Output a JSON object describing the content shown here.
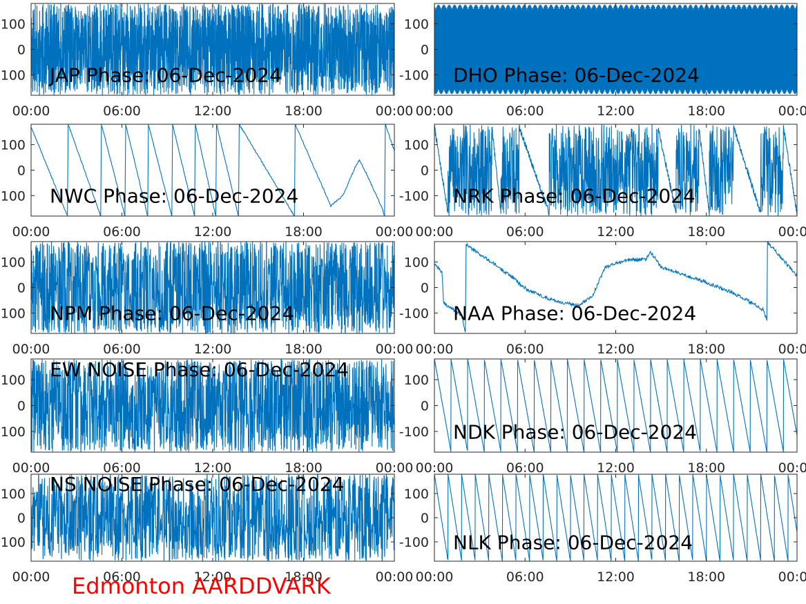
{
  "figure": {
    "footer_label": "Edmonton AARDDVARK",
    "footer_color": "#ff0000",
    "line_color": "#0072bd",
    "axis_color": "#262626",
    "background": "#ffffff"
  },
  "chart_data": [
    {
      "id": "jap",
      "type": "line",
      "title": "JAP Phase: 06-Dec-2024",
      "x_ticks": [
        "00:00",
        "06:00",
        "12:00",
        "18:00",
        "00:00"
      ],
      "y_ticks": [
        "-100",
        "0",
        "100"
      ],
      "ylim": [
        -180,
        180
      ],
      "xlim_hours": [
        0,
        24
      ],
      "series": [
        {
          "pattern": "noise",
          "seed": 11,
          "dense": 0.95
        }
      ]
    },
    {
      "id": "dho",
      "type": "line",
      "title": "DHO Phase: 06-Dec-2024",
      "x_ticks": [
        "00:00",
        "06:00",
        "12:00",
        "18:00",
        "00:00"
      ],
      "y_ticks": [
        "-100",
        "0",
        "100"
      ],
      "ylim": [
        -180,
        180
      ],
      "xlim_hours": [
        0,
        24
      ],
      "series": [
        {
          "pattern": "oscillate",
          "period_hours": 0.18
        }
      ]
    },
    {
      "id": "nwc",
      "type": "line",
      "title": "NWC Phase: 06-Dec-2024",
      "x_ticks": [
        "00:00",
        "06:00",
        "12:00",
        "18:00",
        "00:00"
      ],
      "y_ticks": [
        "-100",
        "0",
        "100"
      ],
      "ylim": [
        -180,
        180
      ],
      "xlim_hours": [
        0,
        24
      ],
      "series": [
        {
          "pattern": "keypoints",
          "points": [
            [
              0,
              170
            ],
            [
              2.4,
              -180
            ],
            [
              2.45,
              180
            ],
            [
              4.6,
              -180
            ],
            [
              4.65,
              180
            ],
            [
              6.2,
              -180
            ],
            [
              6.25,
              180
            ],
            [
              7.7,
              -180
            ],
            [
              7.75,
              180
            ],
            [
              9.3,
              -180
            ],
            [
              9.35,
              180
            ],
            [
              10.8,
              -180
            ],
            [
              10.85,
              180
            ],
            [
              12.2,
              -180
            ],
            [
              12.25,
              180
            ],
            [
              13.7,
              -180
            ],
            [
              13.75,
              180
            ],
            [
              17.4,
              -180
            ],
            [
              17.45,
              180
            ],
            [
              19.8,
              -140
            ],
            [
              20.6,
              -100
            ],
            [
              21.4,
              10
            ],
            [
              21.7,
              40
            ],
            [
              22.2,
              -20
            ],
            [
              23.2,
              -150
            ],
            [
              23.35,
              -180
            ],
            [
              23.4,
              180
            ],
            [
              24,
              75
            ]
          ],
          "noise": 3
        }
      ]
    },
    {
      "id": "nrk",
      "type": "line",
      "title": "NRK Phase: 06-Dec-2024",
      "x_ticks": [
        "00:00",
        "06:00",
        "12:00",
        "18:00",
        "00:00"
      ],
      "y_ticks": [
        "-100",
        "0",
        "100"
      ],
      "ylim": [
        -180,
        180
      ],
      "xlim_hours": [
        0,
        24
      ],
      "series": [
        {
          "pattern": "sawnoise",
          "segments": [
            [
              0,
              0.9
            ],
            [
              0.9,
              3.8
            ],
            [
              3.8,
              4.4
            ],
            [
              4.4,
              5.6
            ],
            [
              5.6,
              7.6
            ],
            [
              7.6,
              14.8
            ],
            [
              14.8,
              16.0
            ],
            [
              16.0,
              17.5
            ],
            [
              17.5,
              18.2
            ],
            [
              18.2,
              19.8
            ],
            [
              19.8,
              21.6
            ],
            [
              21.6,
              23.1
            ],
            [
              23.1,
              24
            ]
          ],
          "seed": 7
        }
      ]
    },
    {
      "id": "npm",
      "type": "line",
      "title": "NPM Phase: 06-Dec-2024",
      "x_ticks": [
        "00:00",
        "06:00",
        "12:00",
        "18:00",
        "00:00"
      ],
      "y_ticks": [
        "-100",
        "0",
        "100"
      ],
      "ylim": [
        -180,
        180
      ],
      "xlim_hours": [
        0,
        24
      ],
      "series": [
        {
          "pattern": "noise",
          "seed": 23,
          "dense": 0.55
        }
      ]
    },
    {
      "id": "naa",
      "type": "line",
      "title": "NAA Phase: 06-Dec-2024",
      "x_ticks": [
        "00:00",
        "06:00",
        "12:00",
        "18:00",
        "00:00"
      ],
      "y_ticks": [
        "-100",
        "0",
        "100"
      ],
      "ylim": [
        -180,
        180
      ],
      "xlim_hours": [
        0,
        24
      ],
      "series": [
        {
          "pattern": "keypoints",
          "points": [
            [
              0,
              95
            ],
            [
              0.5,
              60
            ],
            [
              0.6,
              -60
            ],
            [
              1.8,
              -110
            ],
            [
              2.05,
              -175
            ],
            [
              2.1,
              170
            ],
            [
              2.5,
              150
            ],
            [
              4.0,
              90
            ],
            [
              4.7,
              60
            ],
            [
              5.2,
              40
            ],
            [
              5.7,
              10
            ],
            [
              6.2,
              -10
            ],
            [
              7.4,
              -40
            ],
            [
              8.5,
              -60
            ],
            [
              9.5,
              -70
            ],
            [
              10.5,
              -30
            ],
            [
              11.3,
              80
            ],
            [
              12.3,
              100
            ],
            [
              13.0,
              110
            ],
            [
              14.0,
              110
            ],
            [
              14.3,
              140
            ],
            [
              15.0,
              80
            ],
            [
              16.5,
              50
            ],
            [
              18.0,
              20
            ],
            [
              19.5,
              -15
            ],
            [
              21.0,
              -60
            ],
            [
              21.8,
              -90
            ],
            [
              22.0,
              -130
            ],
            [
              22.05,
              178
            ],
            [
              23.2,
              100
            ],
            [
              24,
              45
            ]
          ],
          "noise": 7
        }
      ]
    },
    {
      "id": "ew",
      "type": "line",
      "title": "EW NOISE Phase: 06-Dec-2024",
      "x_ticks": [
        "00:00",
        "06:00",
        "12:00",
        "18:00",
        "00:00"
      ],
      "y_ticks": [
        "-100",
        "0",
        "100"
      ],
      "ylim": [
        -180,
        180
      ],
      "xlim_hours": [
        0,
        24
      ],
      "series": [
        {
          "pattern": "noise",
          "seed": 37,
          "dense": 0.6
        }
      ]
    },
    {
      "id": "ndk",
      "type": "line",
      "title": "NDK Phase: 06-Dec-2024",
      "x_ticks": [
        "00:00",
        "06:00",
        "12:00",
        "18:00",
        "00:00"
      ],
      "y_ticks": [
        "-100",
        "0",
        "100"
      ],
      "ylim": [
        -180,
        180
      ],
      "xlim_hours": [
        0,
        24
      ],
      "series": [
        {
          "pattern": "saw",
          "period_hours": 1.1,
          "seed": 5
        }
      ]
    },
    {
      "id": "ns",
      "type": "line",
      "title": "NS NOISE Phase: 06-Dec-2024",
      "x_ticks": [
        "00:00",
        "06:00",
        "12:00",
        "18:00",
        "00:00"
      ],
      "y_ticks": [
        "-100",
        "0",
        "100"
      ],
      "ylim": [
        -180,
        180
      ],
      "xlim_hours": [
        0,
        24
      ],
      "series": [
        {
          "pattern": "noise",
          "seed": 53,
          "dense": 0.45
        }
      ]
    },
    {
      "id": "nlk",
      "type": "line",
      "title": "NLK Phase: 06-Dec-2024",
      "x_ticks": [
        "00:00",
        "06:00",
        "12:00",
        "18:00",
        "00:00"
      ],
      "y_ticks": [
        "-100",
        "0",
        "100"
      ],
      "ylim": [
        -180,
        180
      ],
      "xlim_hours": [
        0,
        24
      ],
      "series": [
        {
          "pattern": "saw",
          "period_hours": 0.9,
          "seed": 9
        }
      ]
    }
  ]
}
